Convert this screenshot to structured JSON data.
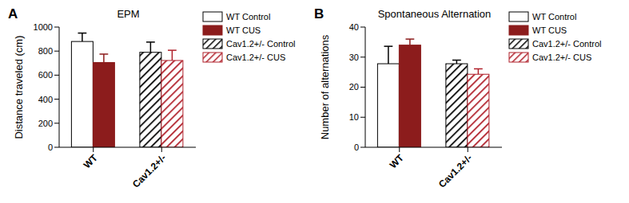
{
  "chart_data": [
    {
      "type": "bar",
      "panel": "A",
      "title": "EPM",
      "y_label": "Distance traveled (cm)",
      "categories": [
        "WT",
        "Cav1.2+/-"
      ],
      "series": [
        {
          "name": "WT Control",
          "color": "#ffffff",
          "values": [
            880,
            null
          ],
          "errors": [
            70,
            null
          ]
        },
        {
          "name": "WT CUS",
          "color": "#8c1c1c",
          "values": [
            705,
            null
          ],
          "errors": [
            70,
            null
          ]
        },
        {
          "name": "Cav1.2+/- Control",
          "color": "#000000",
          "values": [
            null,
            790
          ],
          "errors": [
            null,
            85
          ]
        },
        {
          "name": "Cav1.2+/- CUS",
          "color": "#b0202a",
          "values": [
            null,
            722
          ],
          "errors": [
            null,
            85
          ]
        }
      ],
      "ylim": [
        0,
        1000
      ],
      "yticks": [
        0,
        200,
        400,
        600,
        800,
        1000
      ]
    },
    {
      "type": "bar",
      "panel": "B",
      "title": "Spontaneous Alternation",
      "y_label": "Number of alternations",
      "categories": [
        "WT",
        "Cav1.2+/-"
      ],
      "series": [
        {
          "name": "WT Control",
          "color": "#ffffff",
          "values": [
            27.8,
            null
          ],
          "errors": [
            5.8,
            null
          ]
        },
        {
          "name": "WT CUS",
          "color": "#8c1c1c",
          "values": [
            34,
            null
          ],
          "errors": [
            2,
            null
          ]
        },
        {
          "name": "Cav1.2+/- Control",
          "color": "#000000",
          "values": [
            null,
            27.8
          ],
          "errors": [
            null,
            1.2
          ]
        },
        {
          "name": "Cav1.2+/- CUS",
          "color": "#b0202a",
          "values": [
            null,
            24.3
          ],
          "errors": [
            null,
            1.8
          ]
        }
      ],
      "ylim": [
        0,
        40
      ],
      "yticks": [
        0,
        10,
        20,
        30,
        40
      ]
    }
  ]
}
